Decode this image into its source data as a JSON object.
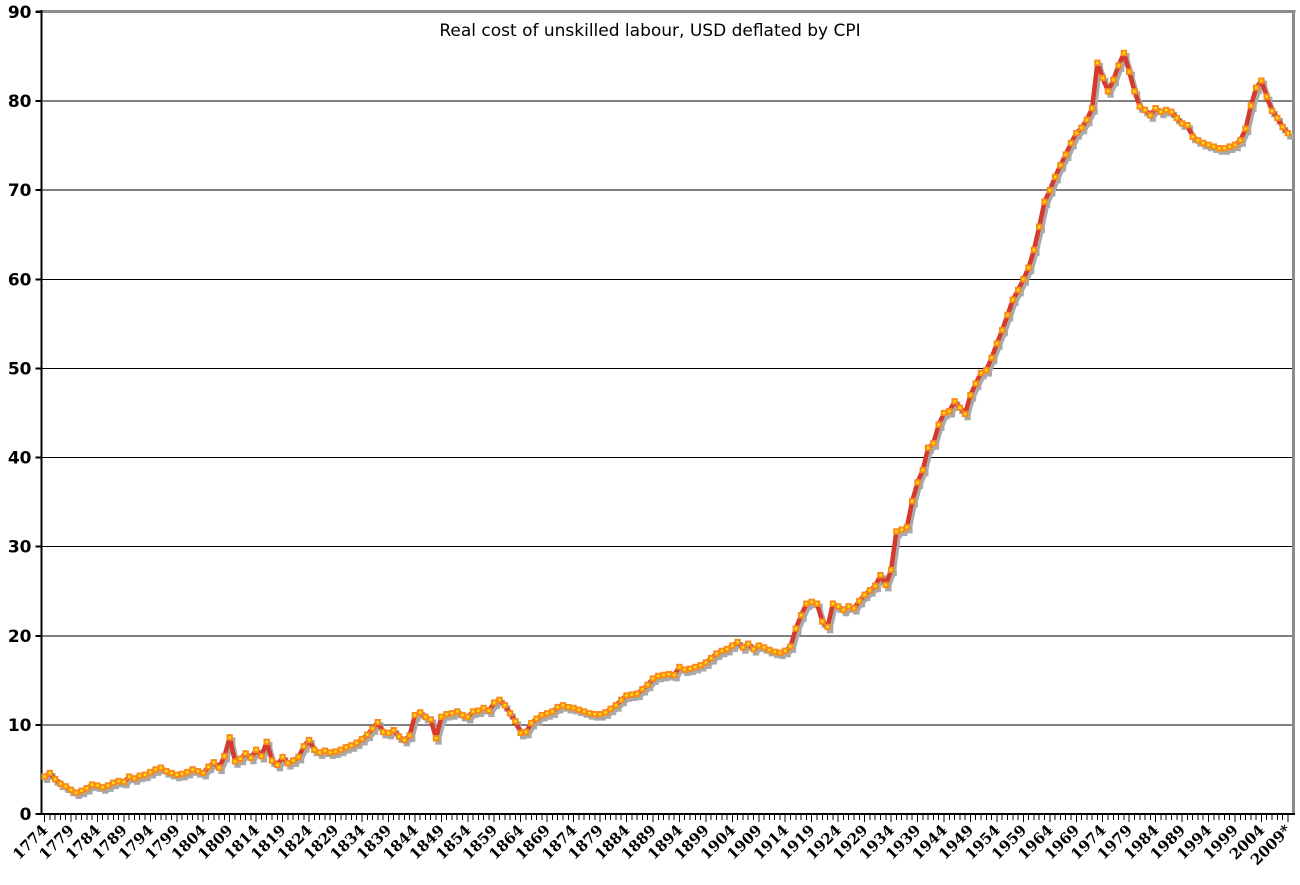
{
  "chart_data": {
    "type": "line",
    "title": "Real cost of unskilled labour, USD deflated by CPI",
    "xlabel": "",
    "ylabel": "",
    "ylim": [
      0,
      90
    ],
    "y_ticks": [
      0,
      10,
      20,
      30,
      40,
      50,
      60,
      70,
      80,
      90
    ],
    "y_tick_labels": [
      "0",
      "10",
      "20",
      "30",
      "40",
      "50",
      "60",
      "70",
      "80",
      "90"
    ],
    "x": {
      "start": 1774,
      "end": 2009,
      "step": 1
    },
    "x_tick_interval": 5,
    "x_tick_labels": [
      "1774",
      "1779",
      "1784",
      "1789",
      "1794",
      "1799",
      "1804",
      "1809",
      "1814",
      "1819",
      "1824",
      "1829",
      "1834",
      "1839",
      "1844",
      "1849",
      "1854",
      "1859",
      "1864",
      "1869",
      "1874",
      "1879",
      "1884",
      "1889",
      "1894",
      "1899",
      "1904",
      "1909",
      "1914",
      "1919",
      "1924",
      "1929",
      "1934",
      "1939",
      "1944",
      "1949",
      "1954",
      "1959",
      "1964",
      "1969",
      "1974",
      "1979",
      "1984",
      "1989",
      "1994",
      "1999",
      "2004",
      "2009*"
    ],
    "grid": "horizontal",
    "legend_position": "none",
    "series": [
      {
        "name": "Real cost of unskilled labour (USD, CPI-deflated)",
        "values": [
          4.2,
          4.6,
          3.9,
          3.4,
          3.1,
          2.7,
          2.4,
          2.6,
          2.9,
          3.3,
          3.2,
          3.0,
          3.2,
          3.5,
          3.7,
          3.6,
          4.2,
          4.0,
          4.3,
          4.4,
          4.7,
          5.0,
          5.2,
          4.8,
          4.6,
          4.4,
          4.5,
          4.7,
          5.0,
          4.8,
          4.6,
          5.3,
          5.8,
          5.2,
          6.5,
          8.6,
          5.9,
          6.2,
          6.8,
          6.3,
          7.2,
          6.5,
          8.1,
          6.0,
          5.5,
          6.4,
          5.7,
          6.0,
          6.4,
          7.6,
          8.3,
          7.2,
          6.9,
          7.1,
          6.9,
          7.0,
          7.2,
          7.5,
          7.7,
          8.0,
          8.4,
          8.9,
          9.6,
          10.3,
          9.2,
          9.1,
          9.4,
          8.7,
          8.3,
          8.8,
          11.1,
          11.4,
          10.9,
          10.6,
          8.5,
          10.9,
          11.2,
          11.3,
          11.5,
          11.1,
          10.9,
          11.5,
          11.6,
          11.9,
          11.6,
          12.5,
          12.8,
          12.2,
          11.3,
          10.4,
          9.1,
          9.2,
          10.2,
          10.7,
          11.1,
          11.3,
          11.5,
          12.0,
          12.2,
          12.0,
          11.9,
          11.7,
          11.5,
          11.3,
          11.2,
          11.2,
          11.4,
          11.8,
          12.2,
          12.8,
          13.3,
          13.4,
          13.5,
          14.0,
          14.5,
          15.2,
          15.5,
          15.6,
          15.7,
          15.6,
          16.5,
          16.2,
          16.3,
          16.5,
          16.7,
          17.0,
          17.5,
          18.0,
          18.3,
          18.5,
          18.9,
          19.3,
          18.7,
          19.1,
          18.5,
          18.9,
          18.7,
          18.4,
          18.2,
          18.1,
          18.3,
          18.8,
          20.8,
          22.3,
          23.6,
          23.8,
          23.6,
          21.6,
          21.0,
          23.6,
          23.3,
          22.9,
          23.3,
          23.1,
          23.9,
          24.6,
          25.1,
          25.6,
          26.8,
          25.7,
          27.4,
          31.7,
          31.9,
          32.2,
          35.1,
          37.2,
          38.6,
          41.1,
          41.6,
          43.7,
          45.0,
          45.2,
          46.3,
          45.6,
          44.9,
          47.0,
          48.3,
          49.5,
          49.8,
          51.2,
          52.8,
          54.3,
          56.0,
          57.7,
          58.8,
          60.0,
          61.3,
          63.3,
          65.9,
          68.7,
          70.0,
          71.5,
          72.8,
          74.0,
          75.3,
          76.4,
          77.0,
          77.9,
          79.2,
          84.3,
          82.6,
          81.1,
          82.4,
          84.0,
          85.4,
          83.3,
          81.1,
          79.4,
          79.0,
          78.4,
          79.2,
          78.8,
          79.0,
          78.8,
          78.1,
          77.5,
          77.3,
          76.0,
          75.6,
          75.3,
          75.1,
          74.9,
          74.7,
          74.7,
          74.9,
          75.1,
          75.6,
          76.9,
          79.5,
          81.5,
          82.3,
          80.5,
          78.9,
          78.1,
          77.1,
          76.4
        ]
      }
    ],
    "styles": {
      "line_color": "#d73a2c",
      "marker_color": "#f98b1d",
      "marker_center_color": "#ffe600",
      "shadow_color": "#a9a9a9",
      "grid_color": "#000000",
      "axis_color": "#000000",
      "border_top_right_color": "#8c8c8c",
      "background": "#ffffff",
      "text_color": "#000000"
    }
  }
}
